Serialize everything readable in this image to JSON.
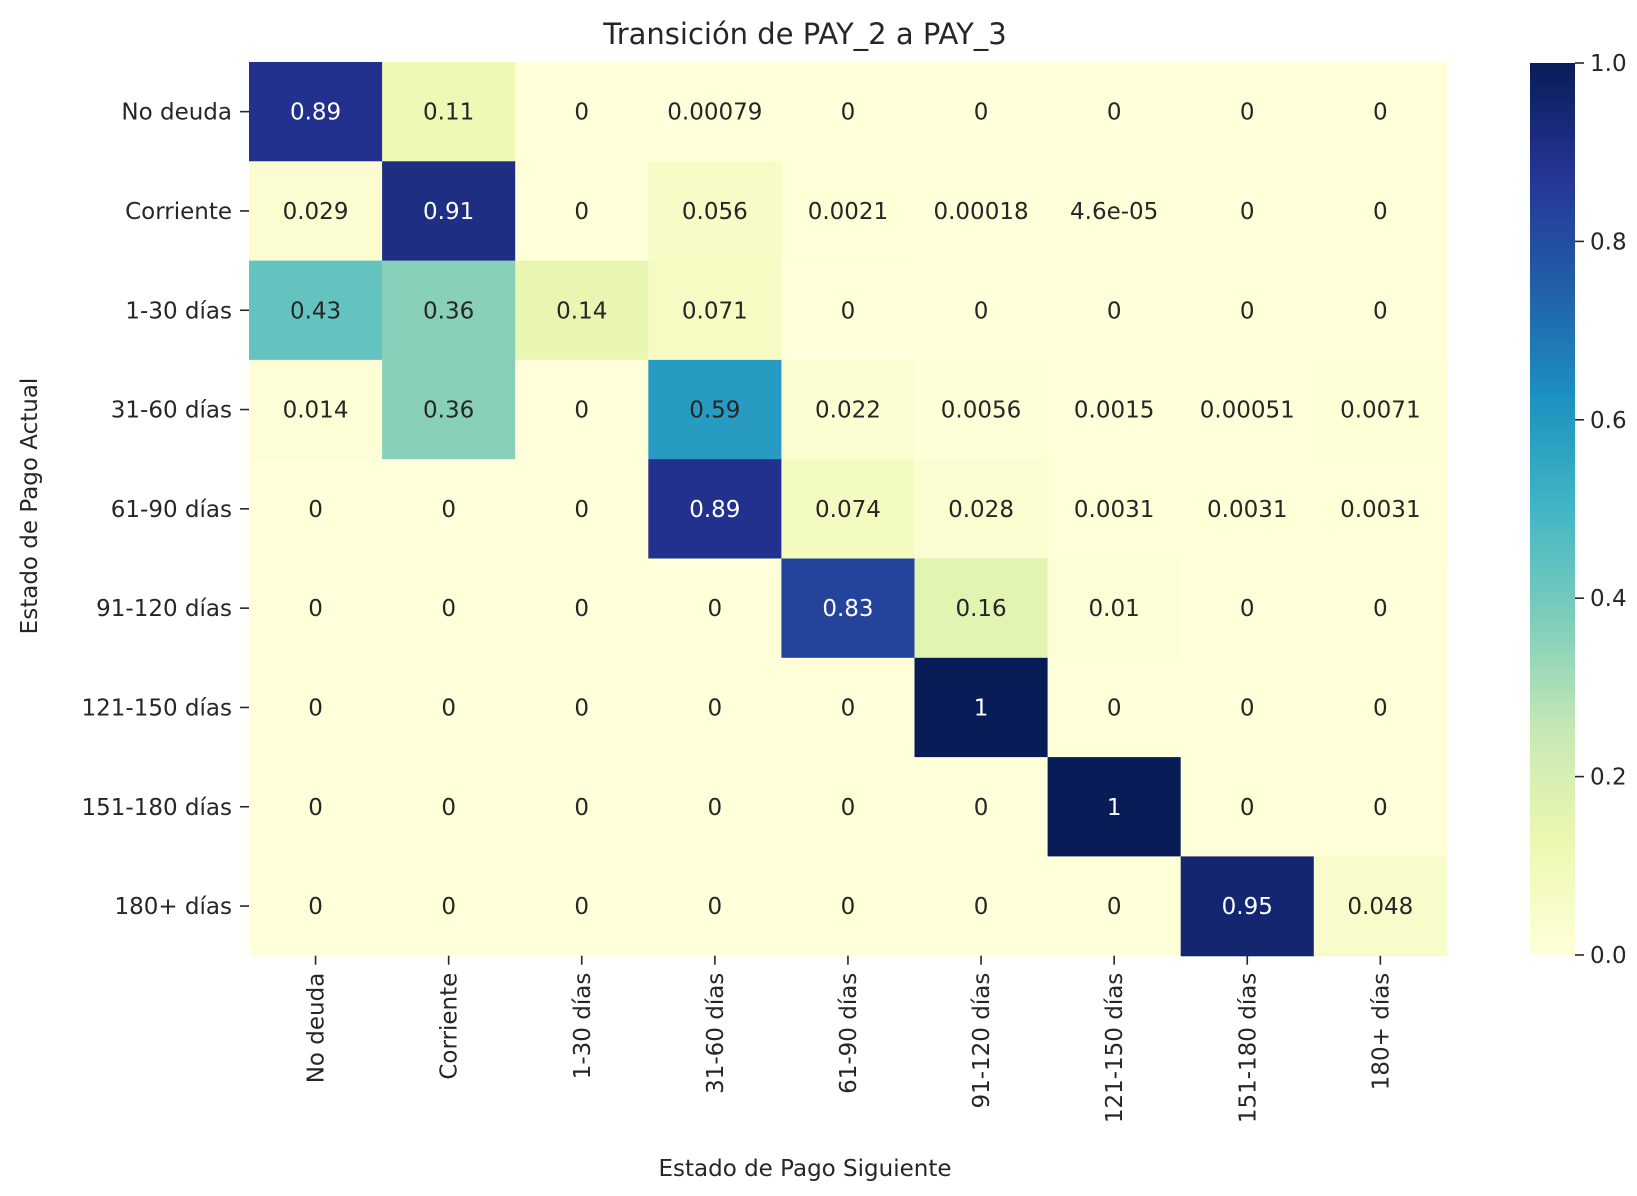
{
  "chart_data": {
    "type": "heatmap",
    "title": "Transición de PAY_2 a PAY_3",
    "xlabel": "Estado de Pago Siguiente",
    "ylabel": "Estado de Pago Actual",
    "x_categories": [
      "No deuda",
      "Corriente",
      "1-30 días",
      "31-60 días",
      "61-90 días",
      "91-120 días",
      "121-150 días",
      "151-180 días",
      "180+ días"
    ],
    "y_categories": [
      "No deuda",
      "Corriente",
      "1-30 días",
      "31-60 días",
      "61-90 días",
      "91-120 días",
      "121-150 días",
      "151-180 días",
      "180+ días"
    ],
    "values": [
      [
        0.89,
        0.11,
        0,
        0.00079,
        0,
        0,
        0,
        0,
        0
      ],
      [
        0.029,
        0.91,
        0,
        0.056,
        0.0021,
        0.00018,
        4.6e-05,
        0,
        0
      ],
      [
        0.43,
        0.36,
        0.14,
        0.071,
        0,
        0,
        0,
        0,
        0
      ],
      [
        0.014,
        0.36,
        0,
        0.59,
        0.022,
        0.0056,
        0.0015,
        0.00051,
        0.0071
      ],
      [
        0,
        0,
        0,
        0.89,
        0.074,
        0.028,
        0.0031,
        0.0031,
        0.0031
      ],
      [
        0,
        0,
        0,
        0,
        0.83,
        0.16,
        0.01,
        0,
        0
      ],
      [
        0,
        0,
        0,
        0,
        0,
        1,
        0,
        0,
        0
      ],
      [
        0,
        0,
        0,
        0,
        0,
        0,
        1,
        0,
        0
      ],
      [
        0,
        0,
        0,
        0,
        0,
        0,
        0,
        0.95,
        0.048
      ]
    ],
    "annotations": [
      [
        "0.89",
        "0.11",
        "0",
        "0.00079",
        "0",
        "0",
        "0",
        "0",
        "0"
      ],
      [
        "0.029",
        "0.91",
        "0",
        "0.056",
        "0.0021",
        "0.00018",
        "4.6e-05",
        "0",
        "0"
      ],
      [
        "0.43",
        "0.36",
        "0.14",
        "0.071",
        "0",
        "0",
        "0",
        "0",
        "0"
      ],
      [
        "0.014",
        "0.36",
        "0",
        "0.59",
        "0.022",
        "0.0056",
        "0.0015",
        "0.00051",
        "0.0071"
      ],
      [
        "0",
        "0",
        "0",
        "0.89",
        "0.074",
        "0.028",
        "0.0031",
        "0.0031",
        "0.0031"
      ],
      [
        "0",
        "0",
        "0",
        "0",
        "0.83",
        "0.16",
        "0.01",
        "0",
        "0"
      ],
      [
        "0",
        "0",
        "0",
        "0",
        "0",
        "1",
        "0",
        "0",
        "0"
      ],
      [
        "0",
        "0",
        "0",
        "0",
        "0",
        "0",
        "1",
        "0",
        "0"
      ],
      [
        "0",
        "0",
        "0",
        "0",
        "0",
        "0",
        "0",
        "0.95",
        "0.048"
      ]
    ],
    "colormap": "YlGnBu",
    "colorbar": {
      "range": [
        0,
        1
      ],
      "ticks": [
        "0.0",
        "0.2",
        "0.4",
        "0.6",
        "0.8",
        "1.0"
      ]
    },
    "grid": false,
    "legend": "colorbar-right"
  }
}
